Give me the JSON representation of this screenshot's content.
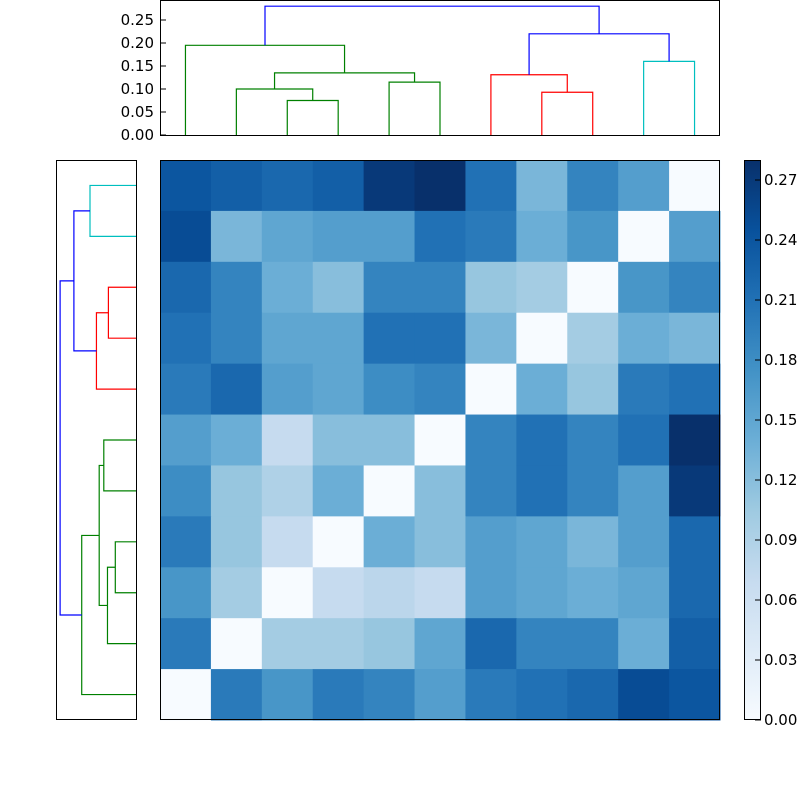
{
  "chart_data": [
    {
      "id": "top-dendrogram",
      "type": "dendrogram",
      "orientation": "top",
      "ylim": [
        0,
        0.3
      ],
      "yticks": [
        0.0,
        0.05,
        0.1,
        0.15,
        0.2,
        0.25
      ],
      "ytick_labels": [
        "0.00",
        "0.05",
        "0.10",
        "0.15",
        "0.20",
        "0.25"
      ],
      "leaves": 11,
      "links": [
        {
          "x1": 2.5,
          "x2": 3.5,
          "h": 0.075,
          "h1": 0,
          "h2": 0,
          "color": "#008000"
        },
        {
          "x1": 1.5,
          "x2": 3.0,
          "h": 0.1,
          "h1": 0,
          "h2": 0.075,
          "color": "#008000"
        },
        {
          "x1": 4.5,
          "x2": 5.5,
          "h": 0.115,
          "h1": 0,
          "h2": 0,
          "color": "#008000"
        },
        {
          "x1": 2.25,
          "x2": 5.0,
          "h": 0.135,
          "h1": 0.1,
          "h2": 0.115,
          "color": "#008000"
        },
        {
          "x1": 0.5,
          "x2": 3.625,
          "h": 0.195,
          "h1": 0,
          "h2": 0.135,
          "color": "#008000"
        },
        {
          "x1": 7.5,
          "x2": 8.5,
          "h": 0.093,
          "h1": 0,
          "h2": 0,
          "color": "#ff0000"
        },
        {
          "x1": 6.5,
          "x2": 8.0,
          "h": 0.131,
          "h1": 0,
          "h2": 0.093,
          "color": "#ff0000"
        },
        {
          "x1": 9.5,
          "x2": 10.5,
          "h": 0.16,
          "h1": 0,
          "h2": 0,
          "color": "#00bfbf"
        },
        {
          "x1": 7.25,
          "x2": 10.0,
          "h": 0.22,
          "h1": 0.131,
          "h2": 0.16,
          "color": "#0000ff"
        },
        {
          "x1": 2.0625,
          "x2": 8.625,
          "h": 0.28,
          "h1": 0.195,
          "h2": 0.22,
          "color": "#0000ff"
        }
      ]
    },
    {
      "id": "left-dendrogram",
      "type": "dendrogram",
      "orientation": "left",
      "leaves": 11,
      "links": [
        {
          "y1": 0.5,
          "y2": 1.5,
          "h": 0.1,
          "h1": 0,
          "h2": 0,
          "color": "#00bfbf"
        },
        {
          "y1": 2.5,
          "y2": 3.5,
          "h": 0.06,
          "h1": 0,
          "h2": 0,
          "color": "#ff0000"
        },
        {
          "y1": 3.0,
          "y2": 4.5,
          "h": 0.086,
          "h1": 0.06,
          "h2": 0,
          "color": "#ff0000"
        },
        {
          "y1": 3.75,
          "y2": 1.0,
          "h": 0.135,
          "h1": 0.086,
          "h2": 0.1,
          "color": "#0000ff"
        },
        {
          "y1": 5.5,
          "y2": 6.5,
          "h": 0.07,
          "h1": 0,
          "h2": 0,
          "color": "#008000"
        },
        {
          "y1": 7.5,
          "y2": 8.5,
          "h": 0.045,
          "h1": 0,
          "h2": 0,
          "color": "#008000"
        },
        {
          "y1": 8.0,
          "y2": 9.5,
          "h": 0.062,
          "h1": 0.045,
          "h2": 0,
          "color": "#008000"
        },
        {
          "y1": 6.0,
          "y2": 8.75,
          "h": 0.08,
          "h1": 0.07,
          "h2": 0.062,
          "color": "#008000"
        },
        {
          "y1": 7.375,
          "y2": 10.5,
          "h": 0.118,
          "h1": 0.08,
          "h2": 0,
          "color": "#008000"
        },
        {
          "y1": 2.375,
          "y2": 8.9375,
          "h": 0.165,
          "h1": 0.135,
          "h2": 0.118,
          "color": "#0000ff"
        }
      ]
    },
    {
      "id": "distance-heatmap",
      "type": "heatmap",
      "rows": 11,
      "cols": 11,
      "vmin": 0.0,
      "vmax": 0.28,
      "colormap": [
        "#f7fbff",
        "#deebf7",
        "#c6dbef",
        "#9ecae1",
        "#6baed6",
        "#4292c6",
        "#2171b5",
        "#08519c",
        "#08306b"
      ],
      "values": [
        [
          0.24,
          0.23,
          0.22,
          0.23,
          0.27,
          0.28,
          0.21,
          0.13,
          0.19,
          0.16,
          0.0
        ],
        [
          0.25,
          0.13,
          0.15,
          0.16,
          0.16,
          0.21,
          0.2,
          0.14,
          0.17,
          0.0,
          0.16
        ],
        [
          0.22,
          0.19,
          0.14,
          0.12,
          0.19,
          0.19,
          0.11,
          0.1,
          0.0,
          0.17,
          0.19
        ],
        [
          0.21,
          0.19,
          0.15,
          0.15,
          0.21,
          0.21,
          0.13,
          0.0,
          0.1,
          0.14,
          0.13
        ],
        [
          0.2,
          0.22,
          0.16,
          0.15,
          0.18,
          0.19,
          0.0,
          0.14,
          0.11,
          0.2,
          0.21
        ],
        [
          0.16,
          0.14,
          0.07,
          0.12,
          0.12,
          0.0,
          0.19,
          0.21,
          0.19,
          0.21,
          0.28
        ],
        [
          0.18,
          0.11,
          0.09,
          0.14,
          0.0,
          0.12,
          0.19,
          0.21,
          0.19,
          0.16,
          0.27
        ],
        [
          0.2,
          0.11,
          0.07,
          0.0,
          0.14,
          0.12,
          0.16,
          0.15,
          0.13,
          0.16,
          0.22
        ],
        [
          0.17,
          0.1,
          0.0,
          0.07,
          0.08,
          0.07,
          0.16,
          0.15,
          0.14,
          0.15,
          0.22
        ],
        [
          0.2,
          0.0,
          0.1,
          0.1,
          0.11,
          0.15,
          0.22,
          0.19,
          0.19,
          0.14,
          0.23
        ],
        [
          0.0,
          0.2,
          0.17,
          0.2,
          0.19,
          0.16,
          0.2,
          0.21,
          0.22,
          0.25,
          0.24
        ]
      ]
    },
    {
      "id": "colorbar",
      "type": "colorbar",
      "ylim": [
        0.0,
        0.28
      ],
      "ticks": [
        0.0,
        0.03,
        0.06,
        0.09,
        0.12,
        0.15,
        0.18,
        0.21,
        0.24,
        0.27
      ],
      "tick_labels": [
        "0.00",
        "0.03",
        "0.06",
        "0.09",
        "0.12",
        "0.15",
        "0.18",
        "0.21",
        "0.24",
        "0.27"
      ]
    }
  ]
}
